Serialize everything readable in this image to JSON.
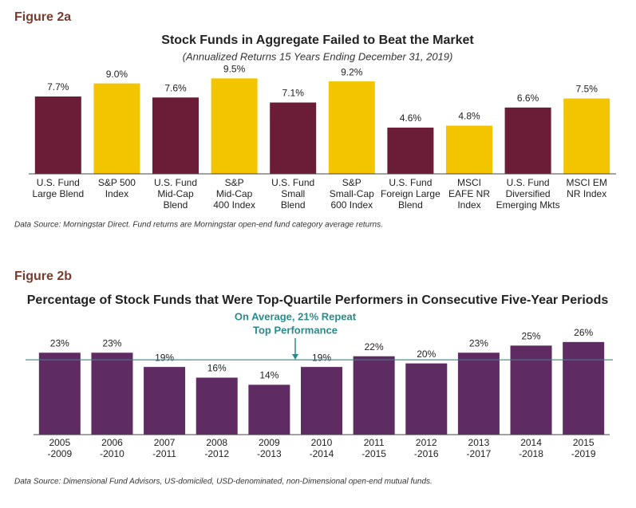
{
  "chart_data": [
    {
      "type": "bar",
      "figure": "Figure 2a",
      "title": "Stock Funds in Aggregate Failed to Beat the Market",
      "subtitle": "(Annualized Returns 15 Years Ending December 31, 2019)",
      "categories": [
        [
          "U.S. Fund",
          "Large Blend"
        ],
        [
          "S&P 500",
          "Index"
        ],
        [
          "U.S. Fund",
          "Mid-Cap",
          "Blend"
        ],
        [
          "S&P",
          "Mid-Cap",
          "400 Index"
        ],
        [
          "U.S. Fund",
          "Small",
          "Blend"
        ],
        [
          "S&P",
          "Small-Cap",
          "600 Index"
        ],
        [
          "U.S. Fund",
          "Foreign Large",
          "Blend"
        ],
        [
          "MSCI",
          "EAFE NR",
          "Index"
        ],
        [
          "U.S. Fund",
          "Diversified",
          "Emerging Mkts"
        ],
        [
          "MSCI EM",
          "NR Index"
        ]
      ],
      "values": [
        7.7,
        9.0,
        7.6,
        9.5,
        7.1,
        9.2,
        4.6,
        4.8,
        6.6,
        7.5
      ],
      "value_labels": [
        "7.7%",
        "9.0%",
        "7.6%",
        "9.5%",
        "7.1%",
        "9.2%",
        "4.6%",
        "4.8%",
        "6.6%",
        "7.5%"
      ],
      "colors": [
        "#6b1c37",
        "#f2c500",
        "#6b1c37",
        "#f2c500",
        "#6b1c37",
        "#f2c500",
        "#6b1c37",
        "#f2c500",
        "#6b1c37",
        "#f2c500"
      ],
      "ylim": [
        0,
        10
      ],
      "source": "Data Source: Morningstar Direct. Fund returns are Morningstar open-end fund category average returns."
    },
    {
      "type": "bar",
      "figure": "Figure 2b",
      "title": "Percentage of Stock Funds that Were Top-Quartile Performers in Consecutive Five-Year Periods",
      "categories": [
        [
          "2005",
          "-2009"
        ],
        [
          "2006",
          "-2010"
        ],
        [
          "2007",
          "-2011"
        ],
        [
          "2008",
          "-2012"
        ],
        [
          "2009",
          "-2013"
        ],
        [
          "2010",
          "-2014"
        ],
        [
          "2011",
          "-2015"
        ],
        [
          "2012",
          "-2016"
        ],
        [
          "2013",
          "-2017"
        ],
        [
          "2014",
          "-2018"
        ],
        [
          "2015",
          "-2019"
        ]
      ],
      "values": [
        23,
        23,
        19,
        16,
        14,
        19,
        22,
        20,
        23,
        25,
        26
      ],
      "value_labels": [
        "23%",
        "23%",
        "19%",
        "16%",
        "14%",
        "19%",
        "22%",
        "20%",
        "23%",
        "25%",
        "26%"
      ],
      "color": "#5f2b63",
      "ylim": [
        0,
        30
      ],
      "average_line": 21,
      "annotation": [
        "On Average, 21% Repeat",
        "Top Performance"
      ],
      "source": "Data Source: Dimensional Fund Advisors, US-domiciled, USD-denominated, non-Dimensional open-end mutual funds."
    }
  ]
}
